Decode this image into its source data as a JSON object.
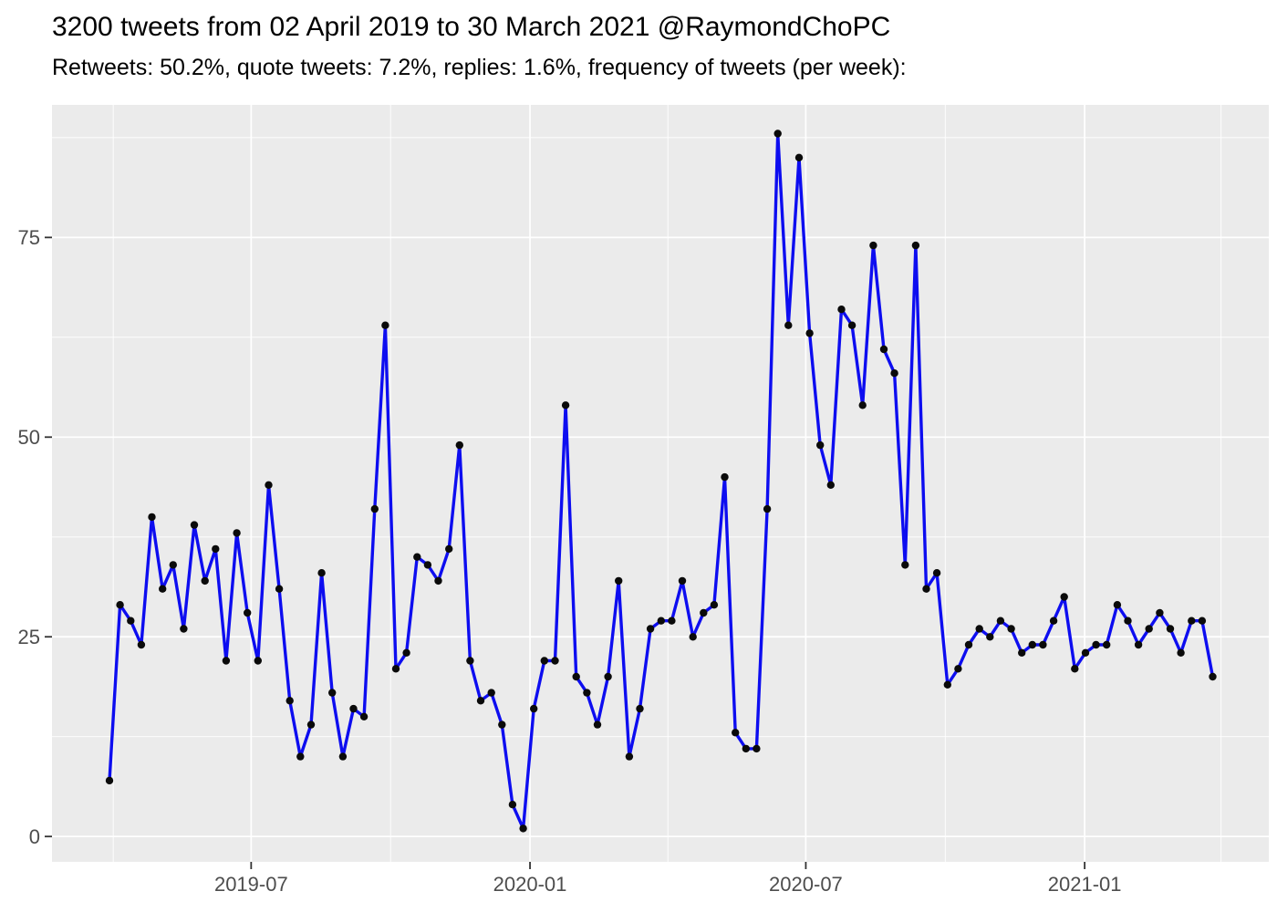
{
  "header": {
    "title": "3200 tweets from 02 April 2019 to 30 March 2021 @RaymondChoPC",
    "subtitle": "Retweets: 50.2%, quote tweets: 7.2%, replies: 1.6%, frequency of tweets (per week):",
    "stats": {
      "total_tweets": "3200",
      "date_range_start": "02 April 2019",
      "date_range_end": "30 March 2021",
      "account": "@RaymondChoPC",
      "retweets_pct": "50.2%",
      "quote_tweets_pct": "7.2%",
      "replies_pct": "1.6%"
    }
  },
  "chart_data": {
    "type": "line",
    "title": "3200 tweets from 02 April 2019 to 30 March 2021 @RaymondChoPC",
    "subtitle": "Retweets: 50.2%, quote tweets: 7.2%, replies: 1.6%, frequency of tweets (per week):",
    "xlabel": "",
    "ylabel": "",
    "x_interval": "week",
    "series": [
      {
        "name": "tweets-per-week",
        "x": [
          "2019-04-02",
          "2019-04-09",
          "2019-04-16",
          "2019-04-23",
          "2019-04-30",
          "2019-05-07",
          "2019-05-14",
          "2019-05-21",
          "2019-05-28",
          "2019-06-04",
          "2019-06-11",
          "2019-06-18",
          "2019-06-25",
          "2019-07-02",
          "2019-07-09",
          "2019-07-16",
          "2019-07-23",
          "2019-07-30",
          "2019-08-06",
          "2019-08-13",
          "2019-08-20",
          "2019-08-27",
          "2019-09-03",
          "2019-09-10",
          "2019-09-17",
          "2019-09-24",
          "2019-10-01",
          "2019-10-08",
          "2019-10-15",
          "2019-10-22",
          "2019-10-29",
          "2019-11-05",
          "2019-11-12",
          "2019-11-19",
          "2019-11-26",
          "2019-12-03",
          "2019-12-10",
          "2019-12-17",
          "2019-12-24",
          "2019-12-31",
          "2020-01-07",
          "2020-01-14",
          "2020-01-21",
          "2020-01-28",
          "2020-02-04",
          "2020-02-11",
          "2020-02-18",
          "2020-02-25",
          "2020-03-03",
          "2020-03-10",
          "2020-03-17",
          "2020-03-24",
          "2020-03-31",
          "2020-04-07",
          "2020-04-14",
          "2020-04-21",
          "2020-04-28",
          "2020-05-05",
          "2020-05-12",
          "2020-05-19",
          "2020-05-26",
          "2020-06-02",
          "2020-06-09",
          "2020-06-16",
          "2020-06-23",
          "2020-06-30",
          "2020-07-07",
          "2020-07-14",
          "2020-07-21",
          "2020-07-28",
          "2020-08-04",
          "2020-08-11",
          "2020-08-18",
          "2020-08-25",
          "2020-09-01",
          "2020-09-08",
          "2020-09-15",
          "2020-09-22",
          "2020-09-29",
          "2020-10-06",
          "2020-10-13",
          "2020-10-20",
          "2020-10-27",
          "2020-11-03",
          "2020-11-10",
          "2020-11-17",
          "2020-11-24",
          "2020-12-01",
          "2020-12-08",
          "2020-12-15",
          "2020-12-22",
          "2020-12-29",
          "2021-01-05",
          "2021-01-12",
          "2021-01-19",
          "2021-01-26",
          "2021-02-02",
          "2021-02-09",
          "2021-02-16",
          "2021-02-23",
          "2021-03-02",
          "2021-03-09",
          "2021-03-16",
          "2021-03-23",
          "2021-03-30"
        ],
        "values": [
          7,
          29,
          27,
          24,
          40,
          31,
          34,
          26,
          39,
          32,
          36,
          22,
          38,
          28,
          22,
          44,
          31,
          17,
          10,
          14,
          33,
          18,
          10,
          16,
          15,
          41,
          64,
          21,
          23,
          35,
          34,
          32,
          36,
          49,
          22,
          17,
          18,
          14,
          4,
          1,
          16,
          22,
          22,
          54,
          20,
          18,
          14,
          20,
          32,
          10,
          16,
          26,
          27,
          27,
          32,
          25,
          28,
          29,
          45,
          13,
          11,
          11,
          41,
          88,
          64,
          85,
          63,
          49,
          44,
          66,
          64,
          54,
          74,
          61,
          58,
          34,
          74,
          31,
          33,
          19,
          21,
          24,
          26,
          25,
          27,
          26,
          23,
          24,
          24,
          27,
          30,
          21,
          23,
          24,
          24,
          29,
          27,
          24,
          26,
          28,
          26,
          23,
          27,
          27,
          20
        ]
      }
    ],
    "x_axis": {
      "start": "2019-04-02",
      "end": "2021-03-30",
      "ticks": [
        {
          "label": "2019-07",
          "date": "2019-07-01"
        },
        {
          "label": "2020-01",
          "date": "2020-01-01"
        },
        {
          "label": "2020-07",
          "date": "2020-07-01"
        },
        {
          "label": "2021-01",
          "date": "2021-01-01"
        }
      ],
      "minor_gridline_dates": [
        "2019-04-01",
        "2019-10-01",
        "2020-04-01",
        "2020-10-01",
        "2021-04-01"
      ]
    },
    "y_axis": {
      "ticks": [
        {
          "label": "0",
          "value": 0
        },
        {
          "label": "25",
          "value": 25
        },
        {
          "label": "50",
          "value": 50
        },
        {
          "label": "75",
          "value": 75
        }
      ],
      "minor_values": [
        12.5,
        37.5,
        62.5,
        87.5
      ],
      "range": [
        -3.2,
        91.6
      ]
    },
    "legend": "none",
    "grid": "on",
    "style": {
      "panel_background": "#EBEBEB",
      "gridline_color": "#FFFFFF",
      "line_color": "#0D0DF0",
      "point_color": "#0A0A0A",
      "axis_text_color": "#4D4D4D",
      "tick_mark_color": "#333333",
      "title_color": "#000000"
    }
  }
}
